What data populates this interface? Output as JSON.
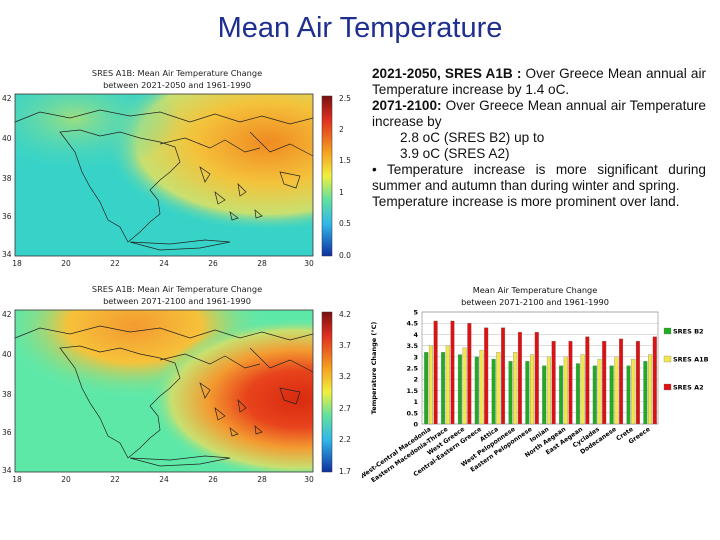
{
  "slide": {
    "title": "Mean Air Temperature"
  },
  "map1": {
    "title_line1": "SRES A1B: Mean Air Temperature Change",
    "title_line2": "between 2021-2050 and 1961-1990",
    "y_ticks": [
      "42",
      "40",
      "38",
      "36",
      "34"
    ],
    "x_ticks": [
      "18",
      "20",
      "22",
      "24",
      "26",
      "28",
      "30"
    ],
    "colorbar_ticks": [
      "2.5",
      "2",
      "1.5",
      "1",
      "0.5",
      "0.0"
    ],
    "colors": {
      "bg": "#37d3c8",
      "warm": "#f4c23a",
      "hot": "#f08a22"
    }
  },
  "map2": {
    "title_line1": "SRES A1B: Mean Air Temperature Change",
    "title_line2": "between 2071-2100 and 1961-1990",
    "y_ticks": [
      "42",
      "40",
      "38",
      "36",
      "34"
    ],
    "x_ticks": [
      "18",
      "20",
      "22",
      "24",
      "26",
      "28",
      "30"
    ],
    "colorbar_ticks": [
      "4.2",
      "3.7",
      "3.2",
      "2.7",
      "2.2",
      "1.7"
    ],
    "colors": {
      "bg": "#5ee8a8",
      "warm": "#f6b83a",
      "hot": "#e8441c"
    }
  },
  "text": {
    "p1_bold": "2021-2050, SRES A1B :",
    "p1_rest": " Over Greece Mean annual air Temperature increase by 1.4 oC.",
    "p2_bold": "2071-2100:",
    "p2_rest": " Over Greece Mean annual air Temperature increase by",
    "p3": "2.8 oC (SRES B2) up to",
    "p4": "3.9 oC (SRES A2)",
    "p5": "• Temperature increase is more significant during summer and autumn than during winter and spring.",
    "p6": "Temperature increase is more prominent over land."
  },
  "chart_data": {
    "type": "bar",
    "title_line1": "Mean Air Temperature Change",
    "title_line2": "between 2071-2100 and 1961-1990",
    "ylabel": "Temperature Change (°C)",
    "ylim": [
      0,
      5
    ],
    "yticks": [
      "0",
      "0.5",
      "1",
      "1.5",
      "2",
      "2.5",
      "3",
      "3.5",
      "4",
      "4.5",
      "5"
    ],
    "categories": [
      "West-Central Macedonia",
      "Eastern Macedonia-Thrace",
      "West Greece",
      "Central-Eastern Greece",
      "Attica",
      "West Peloponnese",
      "Eastern Peloponnese",
      "Ionian",
      "North Aegean",
      "East Aegean",
      "Cyclades",
      "Dodecanese",
      "Crete",
      "Greece"
    ],
    "series": [
      {
        "name": "SRES B2",
        "color": "#22aa22",
        "values": [
          3.2,
          3.2,
          3.1,
          3.0,
          2.9,
          2.8,
          2.8,
          2.6,
          2.6,
          2.7,
          2.6,
          2.6,
          2.6,
          2.8
        ]
      },
      {
        "name": "SRES A1B",
        "color": "#f2e64a",
        "values": [
          3.5,
          3.5,
          3.4,
          3.3,
          3.2,
          3.2,
          3.1,
          3.0,
          3.0,
          3.1,
          2.9,
          3.0,
          2.9,
          3.1
        ]
      },
      {
        "name": "SRES A2",
        "color": "#dd1111",
        "values": [
          4.6,
          4.6,
          4.5,
          4.3,
          4.3,
          4.1,
          4.1,
          3.7,
          3.7,
          3.9,
          3.7,
          3.8,
          3.7,
          3.9
        ]
      }
    ],
    "legend_position": "right"
  }
}
